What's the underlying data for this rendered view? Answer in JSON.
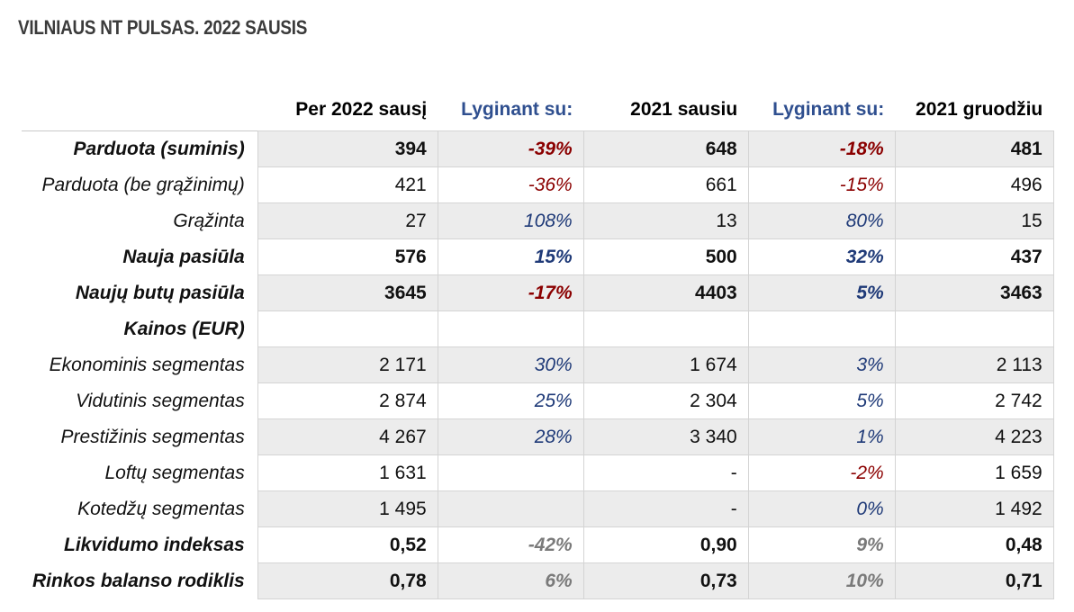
{
  "title": "VILNIAUS NT PULSAS. 2022 SAUSIS",
  "headers": [
    "",
    "Per 2022 sausį",
    "Lyginant su:",
    "2021 sausiu",
    "Lyginant su:",
    "2021 gruodžiu"
  ],
  "rows": [
    {
      "label": "Parduota (suminis)",
      "cells": [
        "394",
        "-39%",
        "648",
        "-18%",
        "481"
      ]
    },
    {
      "label": "Parduota (be grąžinimų)",
      "cells": [
        "421",
        "-36%",
        "661",
        "-15%",
        "496"
      ]
    },
    {
      "label": "Grąžinta",
      "cells": [
        "27",
        "108%",
        "13",
        "80%",
        "15"
      ]
    },
    {
      "label": "Nauja pasiūla",
      "cells": [
        "576",
        "15%",
        "500",
        "32%",
        "437"
      ]
    },
    {
      "label": "Naujų butų pasiūla",
      "cells": [
        "3645",
        "-17%",
        "4403",
        "5%",
        "3463"
      ]
    },
    {
      "label": "Kainos (EUR)",
      "cells": [
        "",
        "",
        "",
        "",
        ""
      ]
    },
    {
      "label": "Ekonominis segmentas",
      "cells": [
        "2 171",
        "30%",
        "1 674",
        "3%",
        "2 113"
      ]
    },
    {
      "label": "Vidutinis segmentas",
      "cells": [
        "2 874",
        "25%",
        "2 304",
        "5%",
        "2 742"
      ]
    },
    {
      "label": "Prestižinis segmentas",
      "cells": [
        "4 267",
        "28%",
        "3 340",
        "1%",
        "4 223"
      ]
    },
    {
      "label": "Loftų segmentas",
      "cells": [
        "1 631",
        "",
        "-",
        "-2%",
        "1 659"
      ]
    },
    {
      "label": "Kotedžų segmentas",
      "cells": [
        "1 495",
        "",
        "-",
        "0%",
        "1 492"
      ]
    },
    {
      "label": "Likvidumo indeksas",
      "cells": [
        "0,52",
        "-42%",
        "0,90",
        "9%",
        "0,48"
      ]
    },
    {
      "label": "Rinkos balanso rodiklis",
      "cells": [
        "0,78",
        "6%",
        "0,73",
        "10%",
        "0,71"
      ]
    }
  ],
  "colors": {
    "negative": "#8b0000",
    "positive": "#1f3a78",
    "muted": "#7a7a7a",
    "header_compare": "#2f4f8f",
    "row_shade": "#ececec"
  }
}
